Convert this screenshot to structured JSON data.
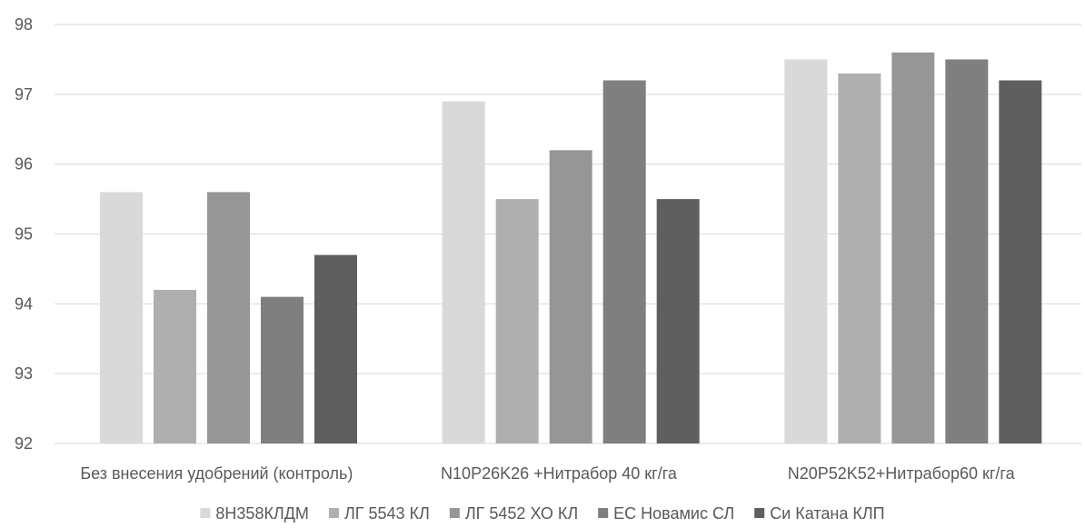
{
  "chart_data": {
    "type": "bar",
    "title": "",
    "xlabel": "",
    "ylabel": "",
    "ylim": [
      92,
      98
    ],
    "y_ticks": [
      "92",
      "93",
      "94",
      "95",
      "96",
      "97",
      "98"
    ],
    "grid": true,
    "legend_position": "bottom",
    "categories": [
      "Без внесения удобрений (контроль)",
      "N10P26K26 +Нитрабор 40 кг/га",
      "N20P52K52+Нитрабор60 кг/га"
    ],
    "series": [
      {
        "name": "8Н358КЛДМ",
        "color": "#d9d9d9",
        "values": [
          95.6,
          96.9,
          97.5
        ]
      },
      {
        "name": "ЛГ 5543 КЛ",
        "color": "#afafaf",
        "values": [
          94.2,
          95.5,
          97.3
        ]
      },
      {
        "name": "ЛГ 5452 ХО КЛ",
        "color": "#969696",
        "values": [
          95.6,
          96.2,
          97.6
        ]
      },
      {
        "name": "ЕС Новамис СЛ",
        "color": "#7f7f7f",
        "values": [
          94.1,
          97.2,
          97.5
        ]
      },
      {
        "name": "Си Катана КЛП",
        "color": "#5f5f5f",
        "values": [
          94.7,
          95.5,
          97.2
        ]
      }
    ]
  }
}
